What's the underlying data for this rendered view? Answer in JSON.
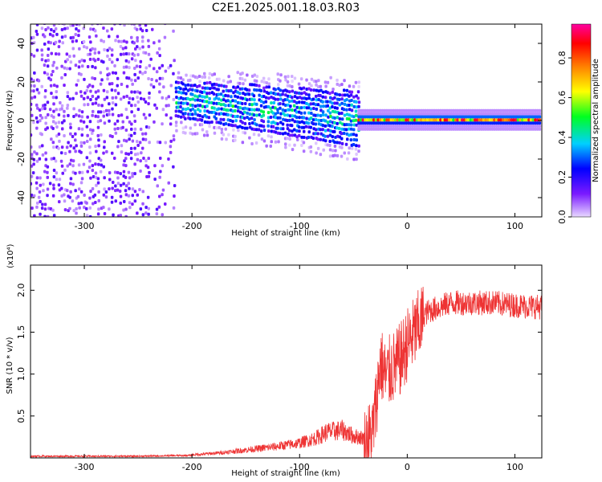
{
  "title": "C2E1.2025.001.18.03.R03",
  "chart_data": [
    {
      "type": "heatmap",
      "xlabel": "Height of straight line (km)",
      "ylabel": "Frequency (Hz)",
      "xlim": [
        -350,
        125
      ],
      "ylim": [
        -50,
        50
      ],
      "xticks": [
        -300,
        -200,
        -100,
        0,
        100
      ],
      "yticks": [
        -40,
        -20,
        0,
        20,
        40
      ],
      "colorbar": {
        "label": "Normalized spectral amplitude",
        "range": [
          0.0,
          0.97
        ],
        "ticks": [
          0.0,
          0.2,
          0.4,
          0.6,
          0.8
        ],
        "colormap": [
          "#e8d8ff",
          "#7a1aff",
          "#0000ff",
          "#00d0ff",
          "#00ff20",
          "#ffff00",
          "#ff8000",
          "#ff0000",
          "#ff00a0"
        ]
      },
      "regions": [
        {
          "x_range": [
            -350,
            -215
          ],
          "pattern": "broadband noise",
          "freq_range": [
            -50,
            50
          ],
          "amplitude": 0.1
        },
        {
          "x_range": [
            -215,
            -45
          ],
          "pattern": "signal band",
          "center_freq": [
            10,
            0
          ],
          "half_width": [
            10,
            15
          ],
          "amplitude": 0.35
        },
        {
          "x_range": [
            -45,
            125
          ],
          "pattern": "narrow line",
          "center_freq": 0.5,
          "half_width": 3,
          "amplitude": 0.9
        }
      ]
    },
    {
      "type": "line",
      "xlabel": "Height of straight line (km)",
      "ylabel": "SNR (10 * v/v)",
      "y_multiplier": "(x10⁴)",
      "xlim": [
        -350,
        125
      ],
      "ylim": [
        0,
        2.3
      ],
      "xticks": [
        -300,
        -200,
        -100,
        0,
        100
      ],
      "yticks": [
        0.5,
        1.0,
        1.5,
        2.0
      ],
      "color": "#ee3333",
      "series": [
        {
          "x": [
            -350,
            -300,
            -250,
            -200,
            -175,
            -150,
            -125,
            -100,
            -85,
            -75,
            -60,
            -50,
            -40,
            -32,
            -28,
            -25,
            -20,
            -15,
            -10,
            -5,
            0,
            5,
            10,
            15,
            20,
            30,
            40,
            60,
            80,
            100,
            125
          ],
          "values": [
            0.02,
            0.02,
            0.02,
            0.03,
            0.05,
            0.08,
            0.11,
            0.15,
            0.2,
            0.26,
            0.28,
            0.22,
            0.2,
            0.35,
            0.8,
            1.2,
            1.0,
            1.1,
            1.15,
            1.25,
            1.4,
            1.5,
            1.6,
            1.7,
            1.75,
            1.8,
            1.85,
            1.85,
            1.85,
            1.82,
            1.8
          ]
        }
      ]
    }
  ]
}
